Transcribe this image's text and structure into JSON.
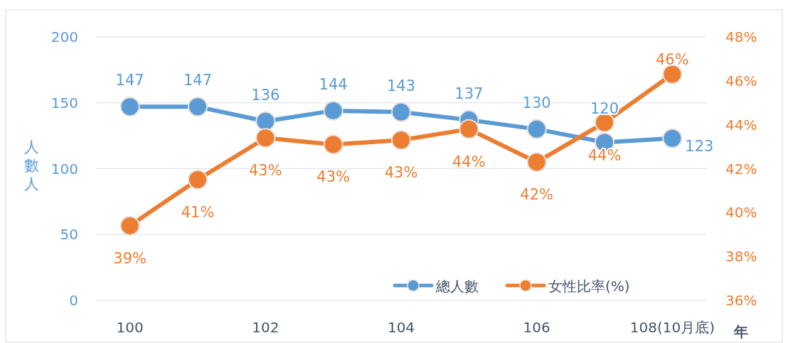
{
  "chart_data": {
    "type": "line",
    "categories": [
      "100",
      null,
      "102",
      null,
      "104",
      null,
      "106",
      null,
      "108(10月底)"
    ],
    "xlabel": "年",
    "ylabel": "人數人",
    "series": [
      {
        "name": "總人數",
        "color": "#5b9bd5",
        "values": [
          147,
          147,
          136,
          144,
          143,
          137,
          130,
          120,
          123
        ],
        "value_labels": [
          "147",
          "147",
          "136",
          "144",
          "143",
          "137",
          "130",
          "120",
          "123"
        ]
      },
      {
        "name": "女性比率(%)",
        "color": "#ed7d31",
        "axis": "y2",
        "values": [
          39.4,
          41.5,
          43.4,
          43.1,
          43.3,
          43.8,
          42.3,
          44.1,
          46.3
        ],
        "value_labels": [
          "39%",
          "41%",
          "43%",
          "43%",
          "43%",
          "44%",
          "42%",
          "44%",
          "46%"
        ]
      }
    ],
    "ylim": [
      0,
      200
    ],
    "yticks": [
      0,
      50,
      100,
      150,
      200
    ],
    "y2lim": [
      36,
      48
    ],
    "y2ticks": [
      {
        "value": 36,
        "label": "36%"
      },
      {
        "value": 38,
        "label": "38%"
      },
      {
        "value": 40,
        "label": "40%"
      },
      {
        "value": 42,
        "label": "42%"
      },
      {
        "value": 44,
        "label": "44%"
      },
      {
        "value": 46,
        "label": "46%"
      },
      {
        "value": 48,
        "label": "48%"
      }
    ],
    "grid": "y",
    "legend": "bottom right",
    "marker": "circle",
    "line_style": "solid"
  }
}
